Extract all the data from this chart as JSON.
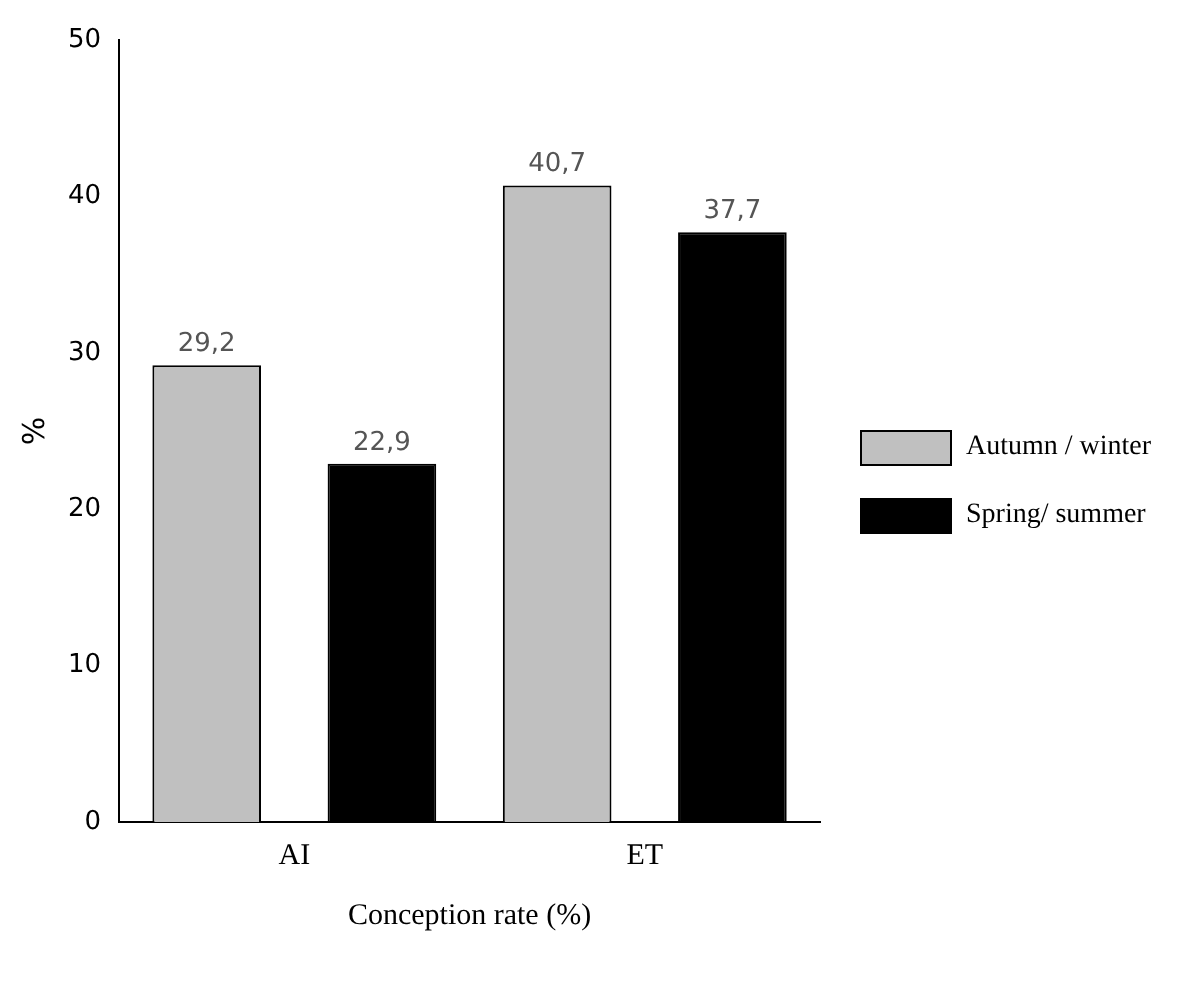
{
  "chart_data": {
    "type": "bar",
    "xlabel": "Conception rate (%)",
    "ylabel": "%",
    "categories": [
      "AI",
      "ET"
    ],
    "series": [
      {
        "name": "Autumn / winter",
        "color": "#c0c0c0",
        "values": [
          29.2,
          40.7
        ],
        "value_labels": [
          "29,2",
          "40,7"
        ]
      },
      {
        "name": "Spring/ summer",
        "color": "#000000",
        "values": [
          22.9,
          37.7
        ],
        "value_labels": [
          "22,9",
          "37,7"
        ]
      }
    ],
    "ylim": [
      0,
      50
    ],
    "yticks": [
      0,
      10,
      20,
      30,
      40,
      50
    ],
    "grid": false,
    "legend": "right"
  }
}
